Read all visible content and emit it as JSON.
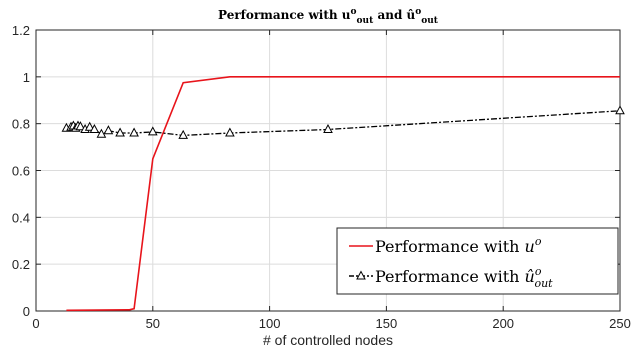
{
  "chart_data": {
    "type": "line",
    "title": "Performance with u",
    "title_parts": {
      "prefix": "Performance with ",
      "u": "u",
      "sup": "o",
      "sub": "out",
      "and": " and ",
      "uhat": "û"
    },
    "xlabel": "# of controlled nodes",
    "ylabel": "",
    "xlim": [
      0,
      250
    ],
    "ylim": [
      0,
      1.2
    ],
    "xticks": [
      0,
      50,
      100,
      150,
      200,
      250
    ],
    "yticks": [
      0,
      0.2,
      0.4,
      0.6,
      0.8,
      1.0,
      1.2
    ],
    "ytick_labels": [
      "0",
      "0.2",
      "0.4",
      "0.6",
      "0.8",
      "1",
      "1.2"
    ],
    "grid": true,
    "legend_position": "bottom-right",
    "series": [
      {
        "name": "Performance with u",
        "legend_prefix": "Performance with ",
        "legend_var": "u",
        "legend_sup": "o",
        "color": "#e8141b",
        "style": "solid",
        "marker": "none",
        "x": [
          13,
          40,
          42,
          50,
          63,
          83,
          250
        ],
        "y": [
          0.003,
          0.005,
          0.01,
          0.65,
          0.975,
          1.0,
          1.0
        ]
      },
      {
        "name": "Performance with û",
        "legend_prefix": "Performance with ",
        "legend_var": "û",
        "legend_sup": "o",
        "legend_sub": "out",
        "color": "#000000",
        "style": "dashdot",
        "marker": "triangle",
        "x": [
          13,
          15,
          16,
          17,
          18,
          19,
          21,
          23,
          25,
          28,
          31,
          36,
          42,
          50,
          63,
          83,
          125,
          250
        ],
        "y": [
          0.78,
          0.785,
          0.79,
          0.78,
          0.79,
          0.787,
          0.775,
          0.785,
          0.775,
          0.755,
          0.77,
          0.76,
          0.76,
          0.765,
          0.75,
          0.76,
          0.775,
          0.855
        ]
      }
    ]
  }
}
